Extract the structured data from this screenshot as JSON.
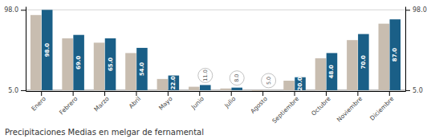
{
  "chart_data": {
    "type": "bar",
    "title": "Precipitaciones Medias en melgar de fernamental",
    "categories": [
      "Enero",
      "Febrero",
      "Marzo",
      "Abril",
      "Mayo",
      "Junio",
      "Julio",
      "Agosto",
      "Septiembre",
      "Octubre",
      "Noviembre",
      "Diciembre"
    ],
    "series": [
      {
        "color": "#c8bdb0",
        "values": [
          92,
          65,
          60,
          48,
          18,
          9,
          7,
          4,
          16,
          42,
          63,
          82
        ]
      },
      {
        "color": "#1a5f87",
        "values": [
          98,
          69,
          65,
          54,
          22,
          11,
          8,
          5,
          20,
          48,
          70,
          87
        ],
        "value_labels": [
          "98.0",
          "69.0",
          "65.0",
          "54.0",
          "22.0",
          "11.0",
          "8.0",
          "5.0",
          "20.0",
          "48.0",
          "70.0",
          "87.0"
        ]
      }
    ],
    "ylim": [
      4,
      102
    ],
    "yticks": [
      {
        "value": 5,
        "label": "5.0"
      },
      {
        "value": 98,
        "label": "98.0"
      }
    ],
    "grid": true,
    "data_labels": true
  }
}
